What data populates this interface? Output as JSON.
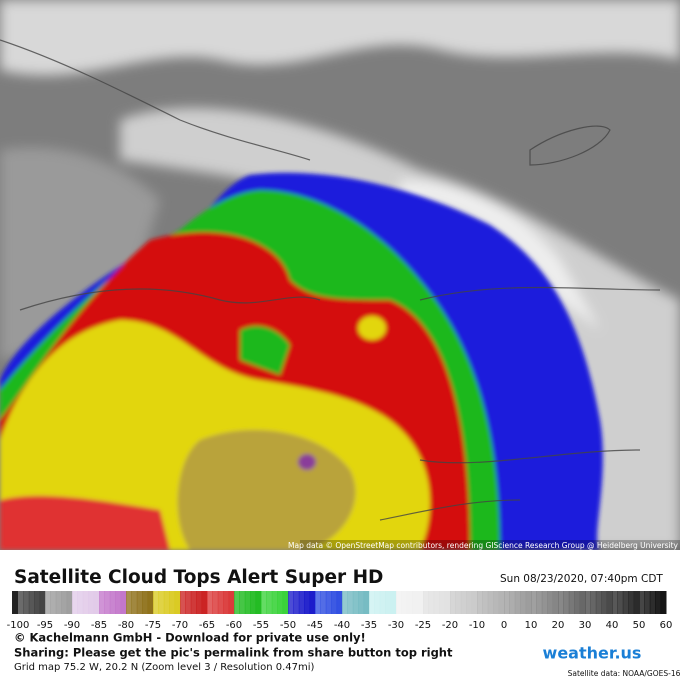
{
  "header": {
    "title": "Satellite Cloud Tops Alert Super HD",
    "datetime": "Sun 08/23/2020, 07:40pm CDT"
  },
  "map": {
    "attribution": "Map data © OpenStreetMap contributors, rendering GIScience Research Group @ Heidelberg University"
  },
  "colorbar": {
    "ticks": [
      -100,
      -95,
      -90,
      -85,
      -80,
      -75,
      -70,
      -65,
      -60,
      -55,
      -50,
      -45,
      -40,
      -35,
      -30,
      -25,
      -20,
      -10,
      0,
      10,
      20,
      30,
      40,
      50,
      60
    ]
  },
  "footer": {
    "copyright": "© Kachelmann GmbH - Download for private use only!",
    "sharing": "Sharing: Please get the pic's permalink from share button top right",
    "grid": "Grid map 75.2 W, 20.2 N (Zoom level 3 / Resolution 0.47mi)",
    "logo": "weather.us",
    "source": "Satellite data: NOAA/GOES-16"
  }
}
